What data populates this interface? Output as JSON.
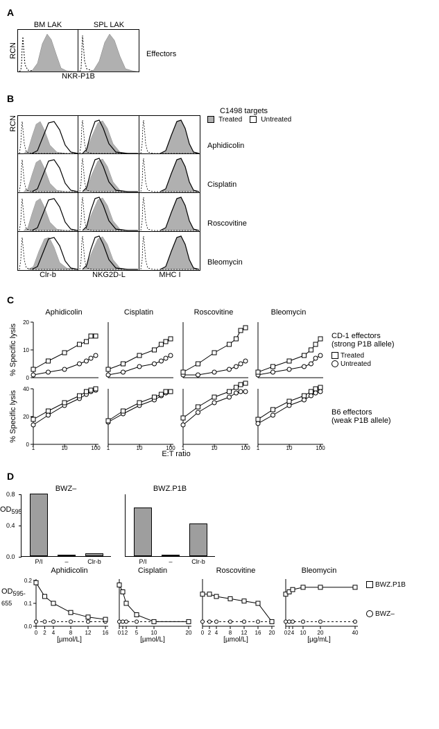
{
  "panelA": {
    "label": "A",
    "y_axis": "RCN",
    "x_axis": "NKR-P1B",
    "side_label": "Effectors",
    "plots": [
      "BM LAK",
      "SPL LAK"
    ]
  },
  "panelB": {
    "label": "B",
    "title": "C1498 targets",
    "y_axis": "RCN",
    "legend": {
      "treated": "Treated",
      "untreated": "Untreated"
    },
    "treatments": [
      "Aphidicolin",
      "Cisplatin",
      "Roscovitine",
      "Bleomycin"
    ],
    "markers": [
      "Clr-b",
      "NKG2D-L",
      "MHC I"
    ]
  },
  "panelC": {
    "label": "C",
    "y_axis": "% Specific lysis",
    "x_axis": "E:T ratio",
    "treatments": [
      "Aphidicolin",
      "Cisplatin",
      "Roscovitine",
      "Bleomycin"
    ],
    "rows": [
      {
        "effector": "CD-1 effectors",
        "sublabel": "(strong P1B allele)",
        "ylim": [
          0,
          20
        ],
        "yticks": [
          0,
          10,
          20
        ]
      },
      {
        "effector": "B6 effectors",
        "sublabel": "(weak P1B allele)",
        "ylim": [
          0,
          40
        ],
        "yticks": [
          0,
          20,
          40
        ]
      }
    ],
    "xticks": [
      1,
      10,
      100
    ],
    "legend": {
      "treated": "Treated",
      "untreated": "Untreated"
    },
    "data": {
      "cd1": {
        "Aphidicolin": {
          "treated": [
            3,
            6,
            9,
            12,
            13,
            15,
            15
          ],
          "untreated": [
            1,
            2,
            3,
            5,
            6,
            7,
            8
          ]
        },
        "Cisplatin": {
          "treated": [
            3,
            5,
            8,
            10,
            12,
            13,
            14
          ],
          "untreated": [
            1,
            2,
            4,
            5,
            6,
            7,
            8
          ]
        },
        "Roscovitine": {
          "treated": [
            2,
            5,
            9,
            12,
            14,
            17,
            18
          ],
          "untreated": [
            1,
            1,
            2,
            3,
            4,
            5,
            6
          ]
        },
        "Bleomycin": {
          "treated": [
            2,
            4,
            6,
            8,
            10,
            12,
            14
          ],
          "untreated": [
            1,
            2,
            3,
            4,
            5,
            7,
            8
          ]
        }
      },
      "b6": {
        "Aphidicolin": {
          "treated": [
            18,
            24,
            30,
            35,
            38,
            39,
            40
          ],
          "untreated": [
            14,
            21,
            28,
            33,
            36,
            38,
            39
          ]
        },
        "Cisplatin": {
          "treated": [
            17,
            24,
            30,
            34,
            36,
            38,
            38
          ],
          "untreated": [
            16,
            22,
            28,
            32,
            35,
            37,
            38
          ]
        },
        "Roscovitine": {
          "treated": [
            19,
            27,
            34,
            38,
            41,
            43,
            44
          ],
          "untreated": [
            14,
            23,
            30,
            34,
            37,
            38,
            38
          ]
        },
        "Bleomycin": {
          "treated": [
            18,
            25,
            31,
            35,
            38,
            40,
            41
          ],
          "untreated": [
            15,
            21,
            28,
            32,
            35,
            37,
            38
          ]
        }
      }
    }
  },
  "panelD": {
    "label": "D",
    "y_axis": "OD",
    "y_axis_sub": "595-655",
    "bar_titles": [
      "BWZ–",
      "BWZ.P1B"
    ],
    "bar_categories": [
      "P/I",
      "–",
      "Clr-b"
    ],
    "bar_data": {
      "BWZ–": [
        0.8,
        0.02,
        0.04
      ],
      "BWZ.P1B": [
        0.62,
        0.02,
        0.42
      ]
    },
    "bar_ylim": [
      0,
      0.8
    ],
    "bar_yticks": [
      0,
      0.4,
      0.8
    ],
    "line_treatments": [
      "Aphidicolin",
      "Cisplatin",
      "Roscovitine",
      "Bleomycin"
    ],
    "line_xlabels": [
      "[µmol/L]",
      "[µmol/L]",
      "[µmol/L]",
      "[µg/mL]"
    ],
    "line_xticks": {
      "Aphidicolin": [
        0,
        2,
        4,
        8,
        12,
        16
      ],
      "Cisplatin": [
        0,
        1,
        2,
        5,
        10,
        20
      ],
      "Roscovitine": [
        0,
        2,
        4,
        8,
        12,
        16,
        20
      ],
      "Bleomycin": [
        0,
        2,
        4,
        10,
        20,
        40
      ]
    },
    "line_ylim": [
      0,
      0.2
    ],
    "line_yticks": [
      0,
      0.1,
      0.2
    ],
    "line_data": {
      "Aphidicolin": {
        "p1b": [
          0.19,
          0.13,
          0.1,
          0.06,
          0.04,
          0.03
        ],
        "neg": [
          0.02,
          0.02,
          0.02,
          0.02,
          0.02,
          0.02
        ]
      },
      "Cisplatin": {
        "p1b": [
          0.18,
          0.15,
          0.1,
          0.05,
          0.02,
          0.02
        ],
        "neg": [
          0.02,
          0.02,
          0.02,
          0.02,
          0.02,
          0.02
        ]
      },
      "Roscovitine": {
        "p1b": [
          0.14,
          0.14,
          0.13,
          0.12,
          0.11,
          0.1,
          0.02
        ],
        "neg": [
          0.02,
          0.02,
          0.02,
          0.02,
          0.02,
          0.02,
          0.02
        ]
      },
      "Bleomycin": {
        "p1b": [
          0.14,
          0.15,
          0.16,
          0.17,
          0.17,
          0.17
        ],
        "neg": [
          0.02,
          0.02,
          0.02,
          0.02,
          0.02,
          0.02
        ]
      }
    },
    "legend": {
      "p1b": "BWZ.P1B",
      "neg": "BWZ–"
    }
  },
  "colors": {
    "fill_gray": "#b0b0b0",
    "line_black": "#000000",
    "dash_black": "#000000",
    "bar_fill": "#9e9e9e"
  }
}
